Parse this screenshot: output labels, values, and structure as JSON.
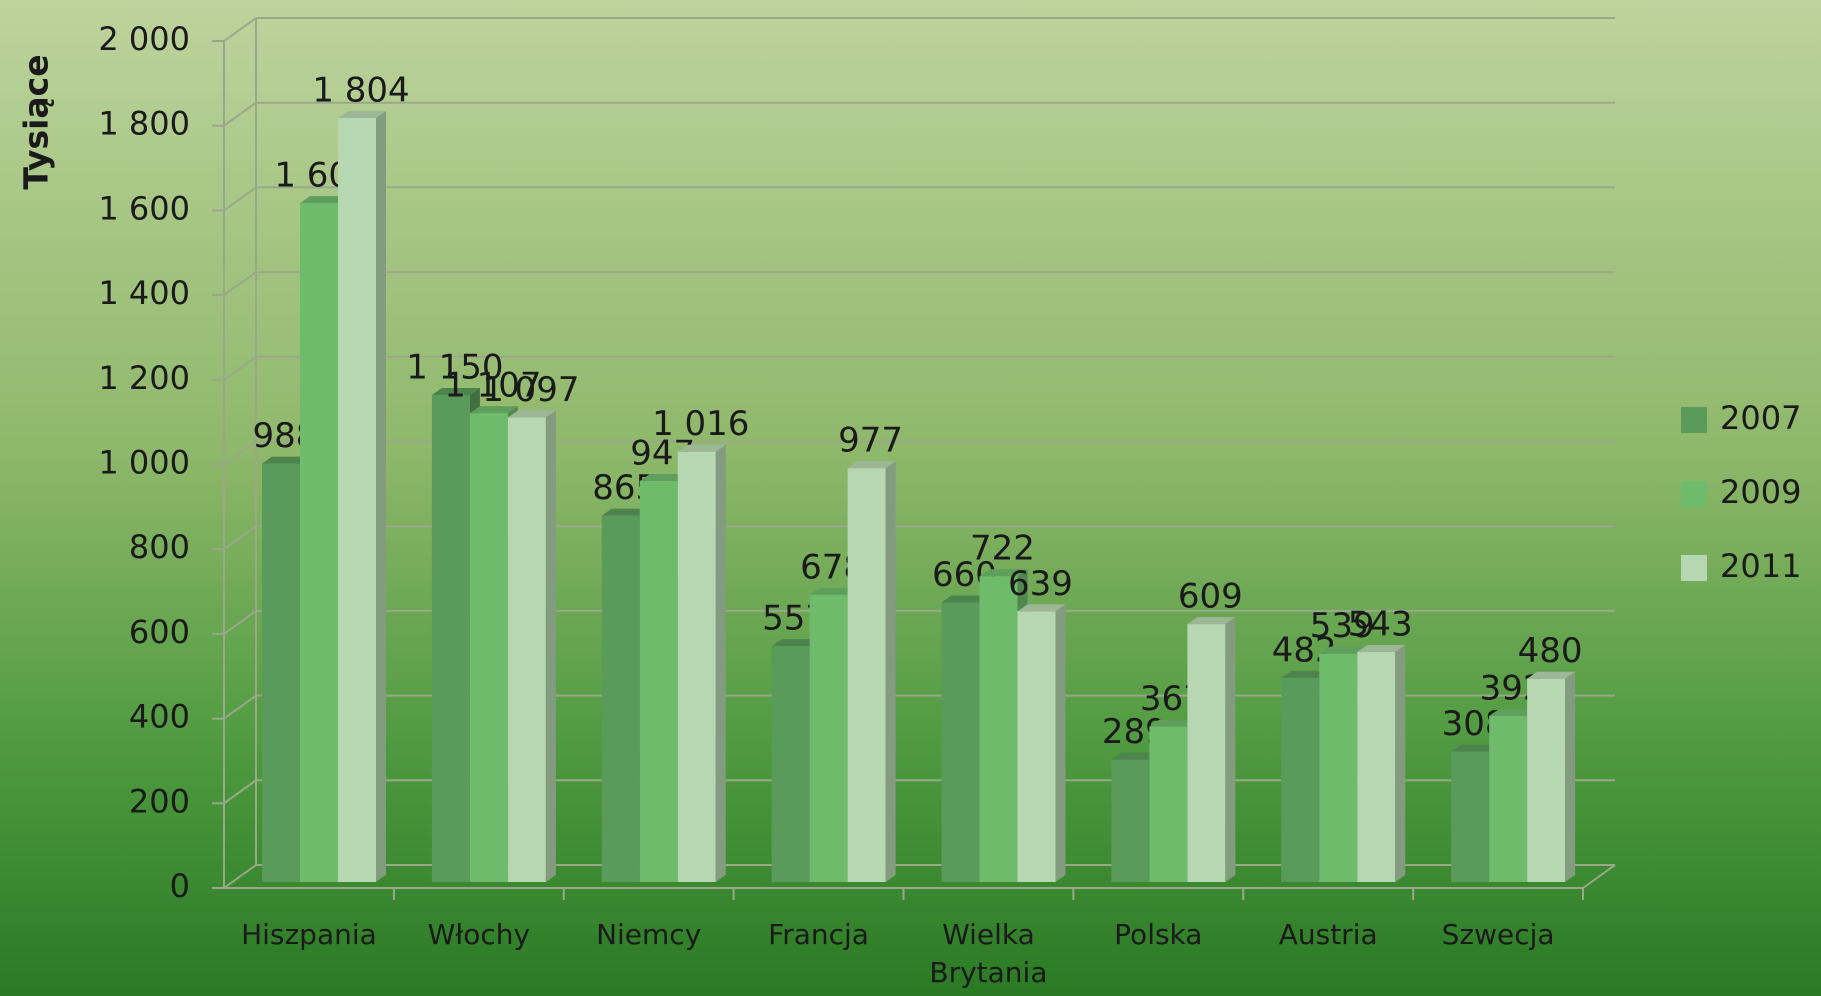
{
  "chart_data": {
    "type": "bar3d",
    "y_label": "Tysiące",
    "categories": [
      "Hiszpania",
      "Włochy",
      "Niemcy",
      "Francja",
      "Wielka Brytania",
      "Polska",
      "Austria",
      "Szwecja"
    ],
    "series": [
      {
        "name": "2007",
        "color": "#5a9a5a",
        "values": [
          988,
          1150,
          865,
          557,
          660,
          289,
          482,
          308
        ],
        "value_labels": [
          "988",
          "1 150",
          "865",
          "557",
          "660",
          "289",
          "482",
          "308"
        ]
      },
      {
        "name": "2009",
        "color": "#6fbb6c",
        "values": [
          1603,
          1107,
          947,
          678,
          722,
          367,
          539,
          392
        ],
        "value_labels": [
          "1 603",
          "1 107",
          "947",
          "678",
          "722",
          "367",
          "539",
          "392"
        ]
      },
      {
        "name": "2011",
        "color": "#b6d7b1",
        "values": [
          1804,
          1097,
          1016,
          977,
          639,
          609,
          543,
          480
        ],
        "value_labels": [
          "1 804",
          "1 097",
          "1 016",
          "977",
          "639",
          "609",
          "543",
          "480"
        ]
      }
    ],
    "ylim": [
      0,
      2000
    ],
    "yticks": [
      0,
      200,
      400,
      600,
      800,
      {
        "value": 1000,
        "label": "1 000"
      },
      {
        "value": 1200,
        "label": "1 200"
      },
      {
        "value": 1400,
        "label": "1 400"
      },
      {
        "value": 1600,
        "label": "1 600"
      },
      {
        "value": 1800,
        "label": "1 800"
      },
      {
        "value": 2000,
        "label": "2 000"
      }
    ],
    "grid": true,
    "legend": "right"
  }
}
